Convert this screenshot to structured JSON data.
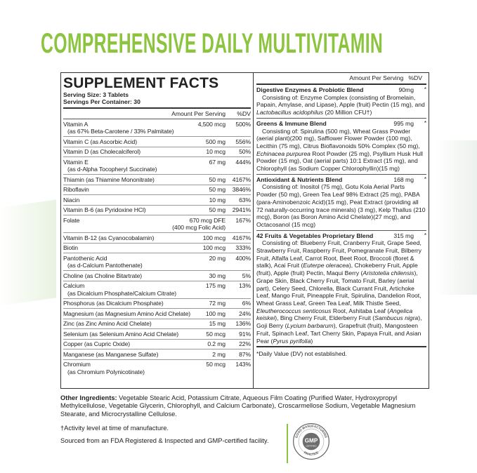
{
  "title": "COMPREHENSIVE DAILY MULTIVITAMIN",
  "colors": {
    "accent": "#8cc43f",
    "text": "#222222"
  },
  "facts": {
    "heading": "SUPPLEMENT FACTS",
    "serving_size": "Serving Size: 3 Tablets",
    "servings_per_container": "Servings Per Container: 30",
    "col_amount": "Amount Per Serving",
    "col_dv": "%DV",
    "rows": [
      {
        "name": "Vitamin A",
        "sub": "(as 67% Beta-Carotene / 33% Palmitate)",
        "amount": "4,500 mcg",
        "dv": "500%"
      },
      {
        "name": "Vitamin C (as Ascorbic Acid)",
        "amount": "500 mg",
        "dv": "556%"
      },
      {
        "name": "Vitamin D (as Cholecalciferol)",
        "amount": "10 mcg",
        "dv": "50%"
      },
      {
        "name": "Vitamin E",
        "sub": "(as d-Alpha Tocopheryl Succinate)",
        "amount": "67 mg",
        "dv": "444%"
      },
      {
        "name": "Thiamin (as Thiamine Mononitrate)",
        "amount": "50 mg",
        "dv": "4167%"
      },
      {
        "name": "Riboflavin",
        "amount": "50 mg",
        "dv": "3846%"
      },
      {
        "name": "Niacin",
        "amount": "10 mg",
        "dv": "63%"
      },
      {
        "name": "Vitamin B-6 (as Pyridoxine HCl)",
        "amount": "50 mg",
        "dv": "2941%"
      },
      {
        "name": "Folate",
        "amount": "670 mcg DFE",
        "amount2": "(400 mcg Folic Acid)",
        "dv": "167%"
      },
      {
        "name": "Vitamin B-12 (as Cyanocobalamin)",
        "amount": "100 mcg",
        "dv": "4167%"
      },
      {
        "name": "Biotin",
        "amount": "100 mcg",
        "dv": "333%"
      },
      {
        "name": "Pantothenic Acid",
        "sub": "(as d-Calcium Pantothenate)",
        "amount": "20 mg",
        "dv": "400%"
      },
      {
        "name": "Choline (as Choline Bitartrate)",
        "amount": "30 mg",
        "dv": "5%"
      },
      {
        "name": "Calcium",
        "sub": "(as Dicalcium Phosphate/Calcium Citrate)",
        "amount": "175 mg",
        "dv": "13%"
      },
      {
        "name": "Phosphorus (as Dicalcium Phosphate)",
        "amount": "72 mg",
        "dv": "6%"
      },
      {
        "name": "Magnesium (as Magnesium Amino Acid Chelate)",
        "amount": "100 mg",
        "dv": "24%"
      },
      {
        "name": "Zinc (as Zinc Amino Acid Chelate)",
        "amount": "15 mg",
        "dv": "136%"
      },
      {
        "name": "Selenium (as Selenium Amino Acid Chelate)",
        "amount": "50 mcg",
        "dv": "91%"
      },
      {
        "name": "Copper (as Cupric Oxide)",
        "amount": "0.2 mg",
        "dv": "22%"
      },
      {
        "name": "Manganese (as Manganese Sulfate)",
        "amount": "2 mg",
        "dv": "87%"
      },
      {
        "name": "Chromium",
        "sub": "(as Chromium Polynicotinate)",
        "amount": "50 mcg",
        "dv": "143%"
      }
    ],
    "right_header": "Amount Per Serving   %DV",
    "blends": [
      {
        "name": "Digestive Enzymes & Probiotic Blend",
        "amount": "90mg",
        "dv": "*",
        "desc": [
          {
            "t": "Consisting of: Enzyme Complex (consisting of Bromelain, Papain, Amylase, and Lipase), Apple (fruit) Pectin (15 mg), and "
          },
          {
            "t": "Lactobacillus acidophilus",
            "i": true
          },
          {
            "t": " (20 Million CFU†)"
          }
        ]
      },
      {
        "name": "Greens & Immune Blend",
        "amount": "995 mg",
        "dv": "*",
        "desc": [
          {
            "t": "Consisting of: Spirulina (500 mg), Wheat Grass Powder (aerial plant)(200 mg), Safflower Flower Powder (100 mg), Lecithin (75 mg), Citrus Bioflavonoids 50% Complex (50 mg), "
          },
          {
            "t": "Echinacea purpurea",
            "i": true
          },
          {
            "t": " Root Powder (25 mg), Psyllium Husk Hull Powder (15 mg), Oat (aerial parts) 10:1 Extract (15 mg), and Chlorophyll (as Sodium Copper Chlorophyllin)(15 mg)"
          }
        ]
      },
      {
        "name": "Antioxidant & Nutrients Blend",
        "amount": "168 mg",
        "dv": "*",
        "desc": [
          {
            "t": "Consisting of: Inositol (75 mg), Gotu Kola Aerial Parts Powder (50 mg), Green Tea Leaf 98% Extract (25 mg), PABA (para-Aminobenzoic Acid)(15 mg), Peat Extract (providing all 72 naturally-occurring trace minerals) (3 mg), Kelp Thallus (210 mcg), Boron (as Boron Amino Acid Chelate)(27 mcg), and Octacosanol (15 mcg)"
          }
        ]
      },
      {
        "name": "42 Fruits & Vegetables Proprietary Blend",
        "amount": "315 mg",
        "dv": "*",
        "desc": [
          {
            "t": "Consisting of: Blueberry Fruit, Cranberry Fruit, Grape Seed, Strawberry Fruit, Raspberry Fruit, Pomegranate Fruit, Bilberry Fruit, Alfalfa Leaf, Carrot Root, Beet Root, Broccoli (floret & stalk), Acai Fruit ("
          },
          {
            "t": "Euterpe oleracea",
            "i": true
          },
          {
            "t": "), Chokeberry Fruit, Apple (fruit), Apple (fruit) Pectin, Maqui Berry ("
          },
          {
            "t": "Aristotelia chilensis",
            "i": true
          },
          {
            "t": "), Grape Skin, Black Cherry Fruit, Tomato Fruit, Barley (aerial part), Celery Seed, Chlorella, Black Currant Fruit, Artichoke Leaf, Mango Fruit, Pineapple Fruit, Spirulina, Dandelion Root, Wheat Grass Leaf, Green Tea Leaf, Milk Thistle Seed, "
          },
          {
            "t": "Eleutherococcus senticosus",
            "i": true
          },
          {
            "t": " Root, Ashitaba Leaf ("
          },
          {
            "t": "Angelica keiskei",
            "i": true
          },
          {
            "t": "), Bing Cherry Fruit, Elderberry Fruit ("
          },
          {
            "t": "Sambucus nigra",
            "i": true
          },
          {
            "t": "), Goji Berry ("
          },
          {
            "t": "Lycium barbarum",
            "i": true
          },
          {
            "t": "), Grapefruit (fruit), Mangosteen Fruit, Spinach Leaf, Tart Cherry Skin, Papaya Fruit, and Asian Pear ("
          },
          {
            "t": "Pyrus pyrifolia",
            "i": true
          },
          {
            "t": ")"
          }
        ]
      }
    ],
    "dv_note": "*Daily Value (DV) not established."
  },
  "other_ingredients_label": "Other Ingredients:",
  "other_ingredients": " Vegetable Stearic Acid, Potassium Citrate, Aqueous Film Coating (Purified Water, Hydroxypropyl Methylcellulose, Vegetable Glycerin, Chlorophyll, and Calcium Carbonate), Croscarmellose Sodium, Vegetable Magnesium Stearate, and Microcrystalline Cellulose.",
  "activity_note": "†Activity level at time of manufacture.",
  "source_note": "Sourced from an FDA Registered & Inspected and GMP-certified facility.",
  "gmp_seal": {
    "top": "GOOD MANUFACTURING",
    "center": "GMP",
    "badge": "CERTIFIED",
    "bottom": "PRACTICE"
  }
}
